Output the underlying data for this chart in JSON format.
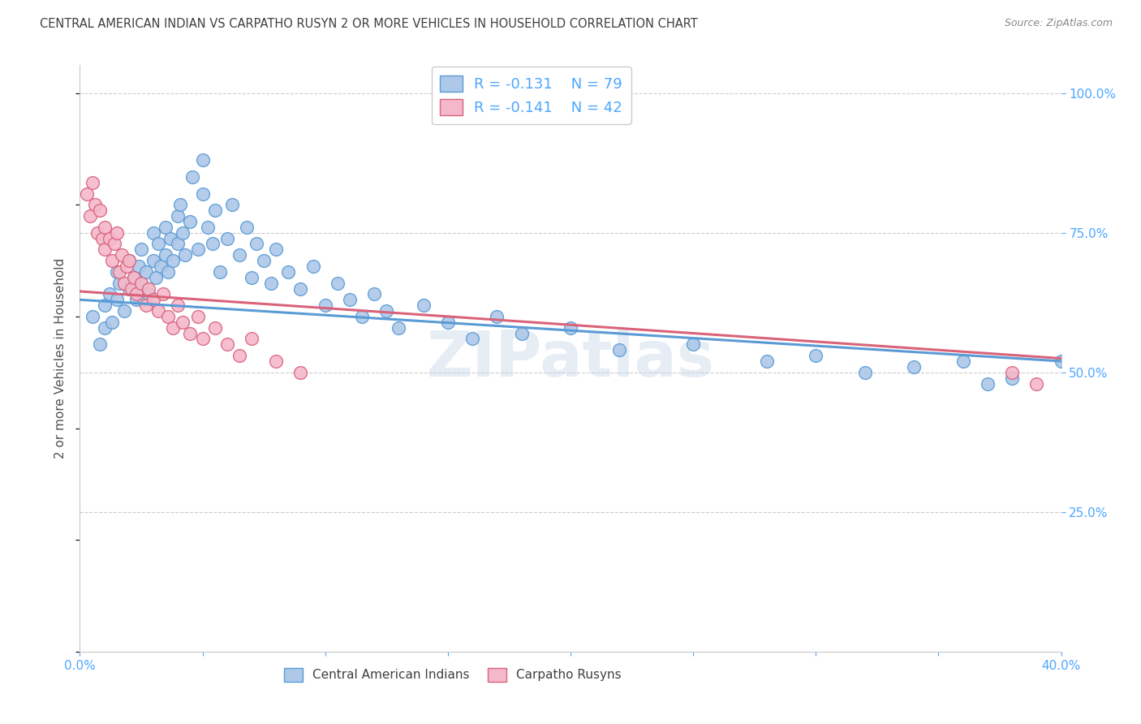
{
  "title": "CENTRAL AMERICAN INDIAN VS CARPATHO RUSYN 2 OR MORE VEHICLES IN HOUSEHOLD CORRELATION CHART",
  "source": "Source: ZipAtlas.com",
  "ylabel": "2 or more Vehicles in Household",
  "xlim": [
    0.0,
    0.4
  ],
  "ylim": [
    0.0,
    1.05
  ],
  "watermark": "ZIPatlas",
  "legend_blue_r": "R = -0.131",
  "legend_blue_n": "N = 79",
  "legend_pink_r": "R = -0.141",
  "legend_pink_n": "N = 42",
  "blue_color": "#adc8e8",
  "pink_color": "#f5b8cb",
  "line_blue": "#5b9bd5",
  "line_pink": "#d9637a",
  "title_color": "#404040",
  "axis_color": "#4da6ff",
  "grid_color": "#cccccc",
  "bg_color": "#ffffff",
  "blue_x": [
    0.005,
    0.008,
    0.01,
    0.01,
    0.012,
    0.013,
    0.015,
    0.015,
    0.016,
    0.018,
    0.02,
    0.02,
    0.022,
    0.023,
    0.024,
    0.025,
    0.025,
    0.026,
    0.027,
    0.028,
    0.03,
    0.03,
    0.031,
    0.032,
    0.033,
    0.035,
    0.035,
    0.036,
    0.037,
    0.038,
    0.04,
    0.04,
    0.041,
    0.042,
    0.043,
    0.045,
    0.046,
    0.048,
    0.05,
    0.05,
    0.052,
    0.054,
    0.055,
    0.057,
    0.06,
    0.062,
    0.065,
    0.068,
    0.07,
    0.072,
    0.075,
    0.078,
    0.08,
    0.085,
    0.09,
    0.095,
    0.1,
    0.105,
    0.11,
    0.115,
    0.12,
    0.125,
    0.13,
    0.14,
    0.15,
    0.16,
    0.17,
    0.18,
    0.2,
    0.22,
    0.25,
    0.28,
    0.3,
    0.32,
    0.34,
    0.36,
    0.37,
    0.38,
    0.4
  ],
  "blue_y": [
    0.6,
    0.55,
    0.62,
    0.58,
    0.64,
    0.59,
    0.68,
    0.63,
    0.66,
    0.61,
    0.7,
    0.65,
    0.67,
    0.63,
    0.69,
    0.72,
    0.66,
    0.63,
    0.68,
    0.64,
    0.75,
    0.7,
    0.67,
    0.73,
    0.69,
    0.76,
    0.71,
    0.68,
    0.74,
    0.7,
    0.78,
    0.73,
    0.8,
    0.75,
    0.71,
    0.77,
    0.85,
    0.72,
    0.88,
    0.82,
    0.76,
    0.73,
    0.79,
    0.68,
    0.74,
    0.8,
    0.71,
    0.76,
    0.67,
    0.73,
    0.7,
    0.66,
    0.72,
    0.68,
    0.65,
    0.69,
    0.62,
    0.66,
    0.63,
    0.6,
    0.64,
    0.61,
    0.58,
    0.62,
    0.59,
    0.56,
    0.6,
    0.57,
    0.58,
    0.54,
    0.55,
    0.52,
    0.53,
    0.5,
    0.51,
    0.52,
    0.48,
    0.49,
    0.52
  ],
  "pink_x": [
    0.003,
    0.004,
    0.005,
    0.006,
    0.007,
    0.008,
    0.009,
    0.01,
    0.01,
    0.012,
    0.013,
    0.014,
    0.015,
    0.016,
    0.017,
    0.018,
    0.019,
    0.02,
    0.021,
    0.022,
    0.023,
    0.025,
    0.027,
    0.028,
    0.03,
    0.032,
    0.034,
    0.036,
    0.038,
    0.04,
    0.042,
    0.045,
    0.048,
    0.05,
    0.055,
    0.06,
    0.065,
    0.07,
    0.08,
    0.09,
    0.38,
    0.39
  ],
  "pink_y": [
    0.82,
    0.78,
    0.84,
    0.8,
    0.75,
    0.79,
    0.74,
    0.76,
    0.72,
    0.74,
    0.7,
    0.73,
    0.75,
    0.68,
    0.71,
    0.66,
    0.69,
    0.7,
    0.65,
    0.67,
    0.64,
    0.66,
    0.62,
    0.65,
    0.63,
    0.61,
    0.64,
    0.6,
    0.58,
    0.62,
    0.59,
    0.57,
    0.6,
    0.56,
    0.58,
    0.55,
    0.53,
    0.56,
    0.52,
    0.5,
    0.5,
    0.48
  ]
}
